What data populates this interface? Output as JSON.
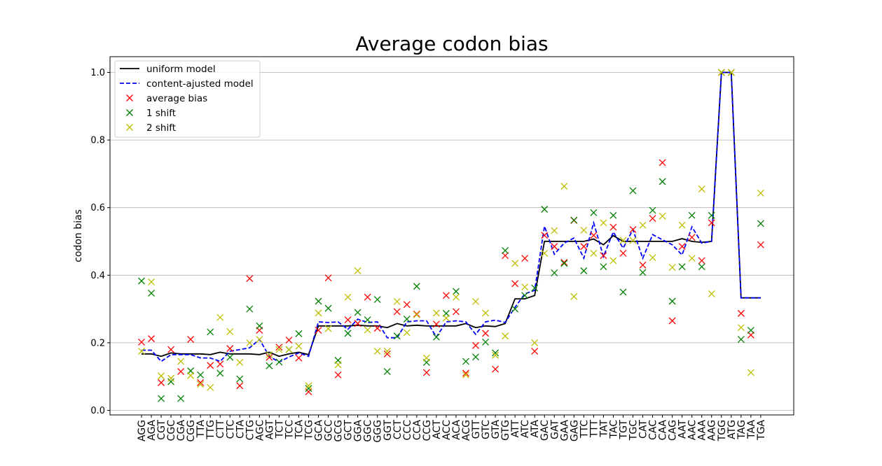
{
  "chart_data": {
    "type": "line",
    "title": "Average codon bias",
    "xlabel": "",
    "ylabel": "codon bias",
    "ylim": [
      -0.02,
      1.05
    ],
    "yticks": [
      0.0,
      0.2,
      0.4,
      0.6,
      0.8,
      1.0
    ],
    "ytick_labels": [
      "0.0",
      "0.2",
      "0.4",
      "0.6",
      "0.8",
      "1.0"
    ],
    "grid": "y",
    "legend_position": "top-left",
    "categories": [
      "AGG",
      "AGA",
      "CGT",
      "CGC",
      "CGA",
      "CGG",
      "TTA",
      "TTG",
      "CTT",
      "CTC",
      "CTA",
      "CTG",
      "AGC",
      "AGT",
      "TCT",
      "TCC",
      "TCA",
      "TCG",
      "GCA",
      "GCC",
      "GCG",
      "GCT",
      "GGA",
      "GGC",
      "GGG",
      "GGT",
      "CCT",
      "CCC",
      "CCA",
      "CCG",
      "ACT",
      "ACC",
      "ACA",
      "ACG",
      "GTT",
      "GTC",
      "GTA",
      "GTG",
      "ATT",
      "ATC",
      "ATA",
      "GAC",
      "GAT",
      "GAA",
      "GAG",
      "TTC",
      "TTT",
      "TAT",
      "TAC",
      "TGT",
      "TGC",
      "CAT",
      "CAC",
      "CAA",
      "CAG",
      "AAT",
      "AAC",
      "AAA",
      "AAG",
      "TGG",
      "ATG",
      "TAG",
      "TAA",
      "TGA"
    ],
    "series": [
      {
        "name": "uniform model",
        "kind": "line",
        "color": "#000000",
        "style": "solid",
        "values": [
          0.167,
          0.167,
          0.16,
          0.17,
          0.167,
          0.167,
          0.167,
          0.165,
          0.172,
          0.167,
          0.167,
          0.167,
          0.165,
          0.172,
          0.16,
          0.167,
          0.172,
          0.165,
          0.25,
          0.25,
          0.25,
          0.25,
          0.252,
          0.25,
          0.25,
          0.245,
          0.257,
          0.25,
          0.252,
          0.25,
          0.25,
          0.25,
          0.25,
          0.257,
          0.245,
          0.25,
          0.248,
          0.257,
          0.33,
          0.33,
          0.34,
          0.5,
          0.5,
          0.5,
          0.5,
          0.5,
          0.507,
          0.49,
          0.517,
          0.5,
          0.5,
          0.5,
          0.5,
          0.5,
          0.5,
          0.508,
          0.5,
          0.497,
          0.5,
          1.0,
          1.0,
          0.333,
          0.333,
          0.333
        ]
      },
      {
        "name": "content-ajusted model",
        "kind": "line",
        "color": "#0000ff",
        "style": "dashed",
        "values": [
          0.178,
          0.178,
          0.145,
          0.165,
          0.165,
          0.165,
          0.155,
          0.155,
          0.145,
          0.175,
          0.18,
          0.185,
          0.21,
          0.16,
          0.143,
          0.158,
          0.17,
          0.16,
          0.262,
          0.26,
          0.262,
          0.24,
          0.27,
          0.26,
          0.262,
          0.215,
          0.215,
          0.262,
          0.265,
          0.265,
          0.217,
          0.262,
          0.265,
          0.262,
          0.225,
          0.262,
          0.267,
          0.26,
          0.305,
          0.345,
          0.355,
          0.545,
          0.462,
          0.495,
          0.51,
          0.45,
          0.555,
          0.455,
          0.528,
          0.48,
          0.535,
          0.45,
          0.52,
          0.505,
          0.49,
          0.46,
          0.543,
          0.495,
          0.5,
          1.0,
          1.0,
          0.333,
          0.333,
          0.333
        ]
      },
      {
        "name": "average bias",
        "kind": "scatter",
        "marker": "x",
        "color": "#ff0000",
        "values": [
          0.202,
          0.212,
          0.082,
          0.18,
          0.115,
          0.21,
          0.082,
          0.133,
          0.137,
          0.183,
          0.073,
          0.39,
          0.237,
          0.157,
          0.187,
          0.208,
          0.155,
          0.055,
          0.237,
          0.392,
          0.105,
          0.268,
          0.257,
          0.335,
          0.243,
          0.167,
          0.292,
          0.313,
          0.285,
          0.112,
          0.255,
          0.34,
          0.292,
          0.11,
          0.192,
          0.228,
          0.122,
          0.458,
          0.375,
          0.45,
          0.175,
          0.518,
          0.485,
          0.438,
          0.562,
          0.485,
          0.518,
          0.458,
          0.542,
          0.465,
          0.535,
          0.43,
          0.568,
          0.733,
          0.265,
          0.485,
          0.512,
          0.443,
          0.555,
          1.0,
          1.0,
          0.287,
          0.223,
          0.49
        ]
      },
      {
        "name": "1 shift",
        "kind": "scatter",
        "marker": "x",
        "color": "#008000",
        "values": [
          0.383,
          0.347,
          0.035,
          0.085,
          0.035,
          0.117,
          0.105,
          0.232,
          0.11,
          0.157,
          0.093,
          0.3,
          0.25,
          0.132,
          0.143,
          0.18,
          0.227,
          0.065,
          0.323,
          0.302,
          0.148,
          0.228,
          0.29,
          0.268,
          0.328,
          0.115,
          0.22,
          0.27,
          0.367,
          0.142,
          0.217,
          0.287,
          0.352,
          0.145,
          0.158,
          0.202,
          0.17,
          0.473,
          0.3,
          0.34,
          0.362,
          0.595,
          0.407,
          0.435,
          0.563,
          0.413,
          0.585,
          0.425,
          0.577,
          0.35,
          0.65,
          0.408,
          0.592,
          0.677,
          0.323,
          0.425,
          0.577,
          0.425,
          0.577,
          1.0,
          1.0,
          0.21,
          0.237,
          0.553
        ]
      },
      {
        "name": "2 shift",
        "kind": "scatter",
        "marker": "x",
        "color": "#bfbf00",
        "values": [
          0.175,
          0.38,
          0.102,
          0.095,
          0.145,
          0.103,
          0.077,
          0.068,
          0.275,
          0.233,
          0.142,
          0.2,
          0.21,
          0.165,
          0.18,
          0.18,
          0.19,
          0.073,
          0.288,
          0.242,
          0.135,
          0.335,
          0.413,
          0.238,
          0.175,
          0.175,
          0.322,
          0.23,
          0.283,
          0.155,
          0.288,
          0.273,
          0.335,
          0.105,
          0.322,
          0.288,
          0.163,
          0.22,
          0.435,
          0.365,
          0.2,
          0.465,
          0.532,
          0.663,
          0.337,
          0.533,
          0.465,
          0.555,
          0.443,
          0.503,
          0.503,
          0.548,
          0.452,
          0.575,
          0.423,
          0.548,
          0.45,
          0.655,
          0.345,
          1.0,
          1.0,
          0.245,
          0.112,
          0.643
        ]
      }
    ]
  }
}
